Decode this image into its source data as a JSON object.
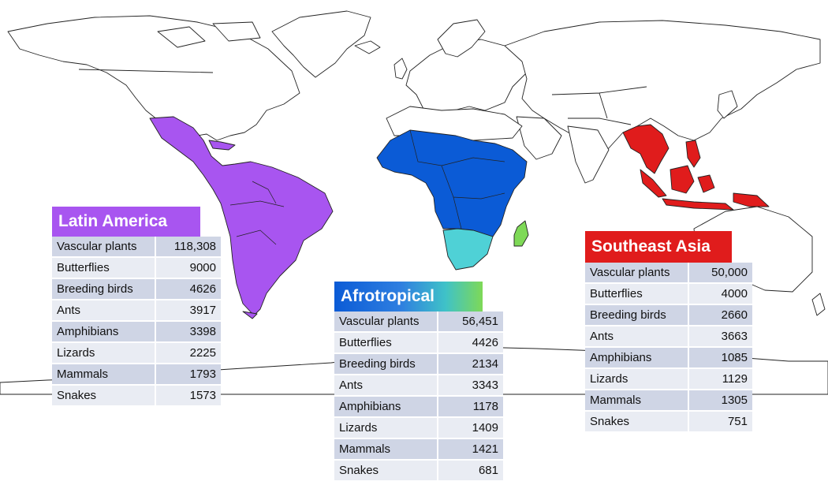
{
  "regions": {
    "latin_america": {
      "title": "Latin America",
      "color": "#a855f0",
      "rows": [
        {
          "label": "Vascular plants",
          "value": "118,308"
        },
        {
          "label": "Butterflies",
          "value": "9000"
        },
        {
          "label": "Breeding birds",
          "value": "4626"
        },
        {
          "label": "Ants",
          "value": "3917"
        },
        {
          "label": "Amphibians",
          "value": "3398"
        },
        {
          "label": "Lizards",
          "value": "2225"
        },
        {
          "label": "Mammals",
          "value": "1793"
        },
        {
          "label": "Snakes",
          "value": "1573"
        }
      ]
    },
    "afrotropical": {
      "title": "Afrotropical",
      "color": "#0b5bd6",
      "southern_color": "#4fd1d6",
      "madagascar_color": "#7ed957",
      "rows": [
        {
          "label": "Vascular plants",
          "value": "56,451"
        },
        {
          "label": "Butterflies",
          "value": "4426"
        },
        {
          "label": "Breeding birds",
          "value": "2134"
        },
        {
          "label": "Ants",
          "value": "3343"
        },
        {
          "label": "Amphibians",
          "value": "1178"
        },
        {
          "label": "Lizards",
          "value": "1409"
        },
        {
          "label": "Mammals",
          "value": "1421"
        },
        {
          "label": "Snakes",
          "value": "681"
        }
      ]
    },
    "southeast_asia": {
      "title": "Southeast Asia",
      "color": "#e01c1c",
      "rows": [
        {
          "label": "Vascular plants",
          "value": "50,000"
        },
        {
          "label": "Butterflies",
          "value": "4000"
        },
        {
          "label": "Breeding birds",
          "value": "2660"
        },
        {
          "label": "Ants",
          "value": "3663"
        },
        {
          "label": "Amphibians",
          "value": "1085"
        },
        {
          "label": "Lizards",
          "value": "1129"
        },
        {
          "label": "Mammals",
          "value": "1305"
        },
        {
          "label": "Snakes",
          "value": "751"
        }
      ]
    }
  }
}
